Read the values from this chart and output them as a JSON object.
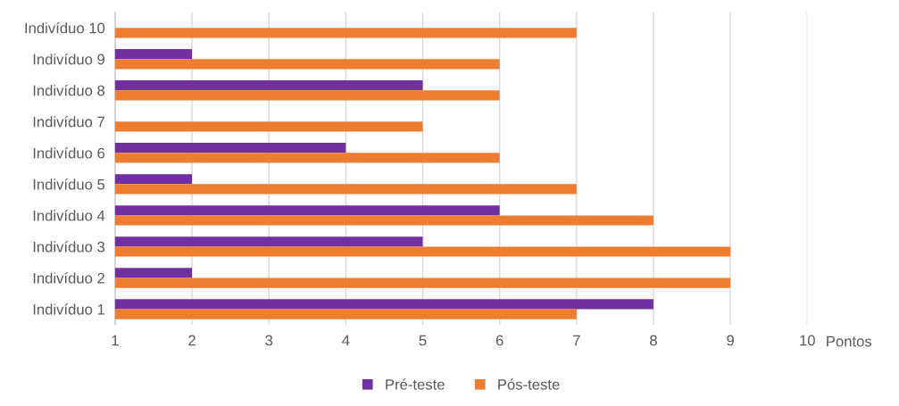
{
  "chart_data": {
    "type": "bar",
    "orientation": "horizontal",
    "xlabel": "Pontos",
    "categories": [
      "Indivíduo 10",
      "Indivíduo 9",
      "Indivíduo 8",
      "Indivíduo 7",
      "Indivíduo 6",
      "Indivíduo 5",
      "Indivíduo 4",
      "Indivíduo 3",
      "Indivíduo 2",
      "Indivíduo 1"
    ],
    "series": [
      {
        "name": "Pré-teste",
        "color": "#7030a0",
        "values": [
          null,
          2,
          5,
          null,
          4,
          2,
          6,
          5,
          2,
          8
        ]
      },
      {
        "name": "Pós-teste",
        "color": "#ed7d31",
        "values": [
          7,
          6,
          6,
          5,
          6,
          7,
          8,
          9,
          9,
          7
        ]
      }
    ],
    "xlim": [
      1,
      10
    ],
    "xticks": [
      1,
      2,
      3,
      4,
      5,
      6,
      7,
      8,
      9,
      10
    ],
    "grid": "x",
    "legend": "bottom"
  }
}
